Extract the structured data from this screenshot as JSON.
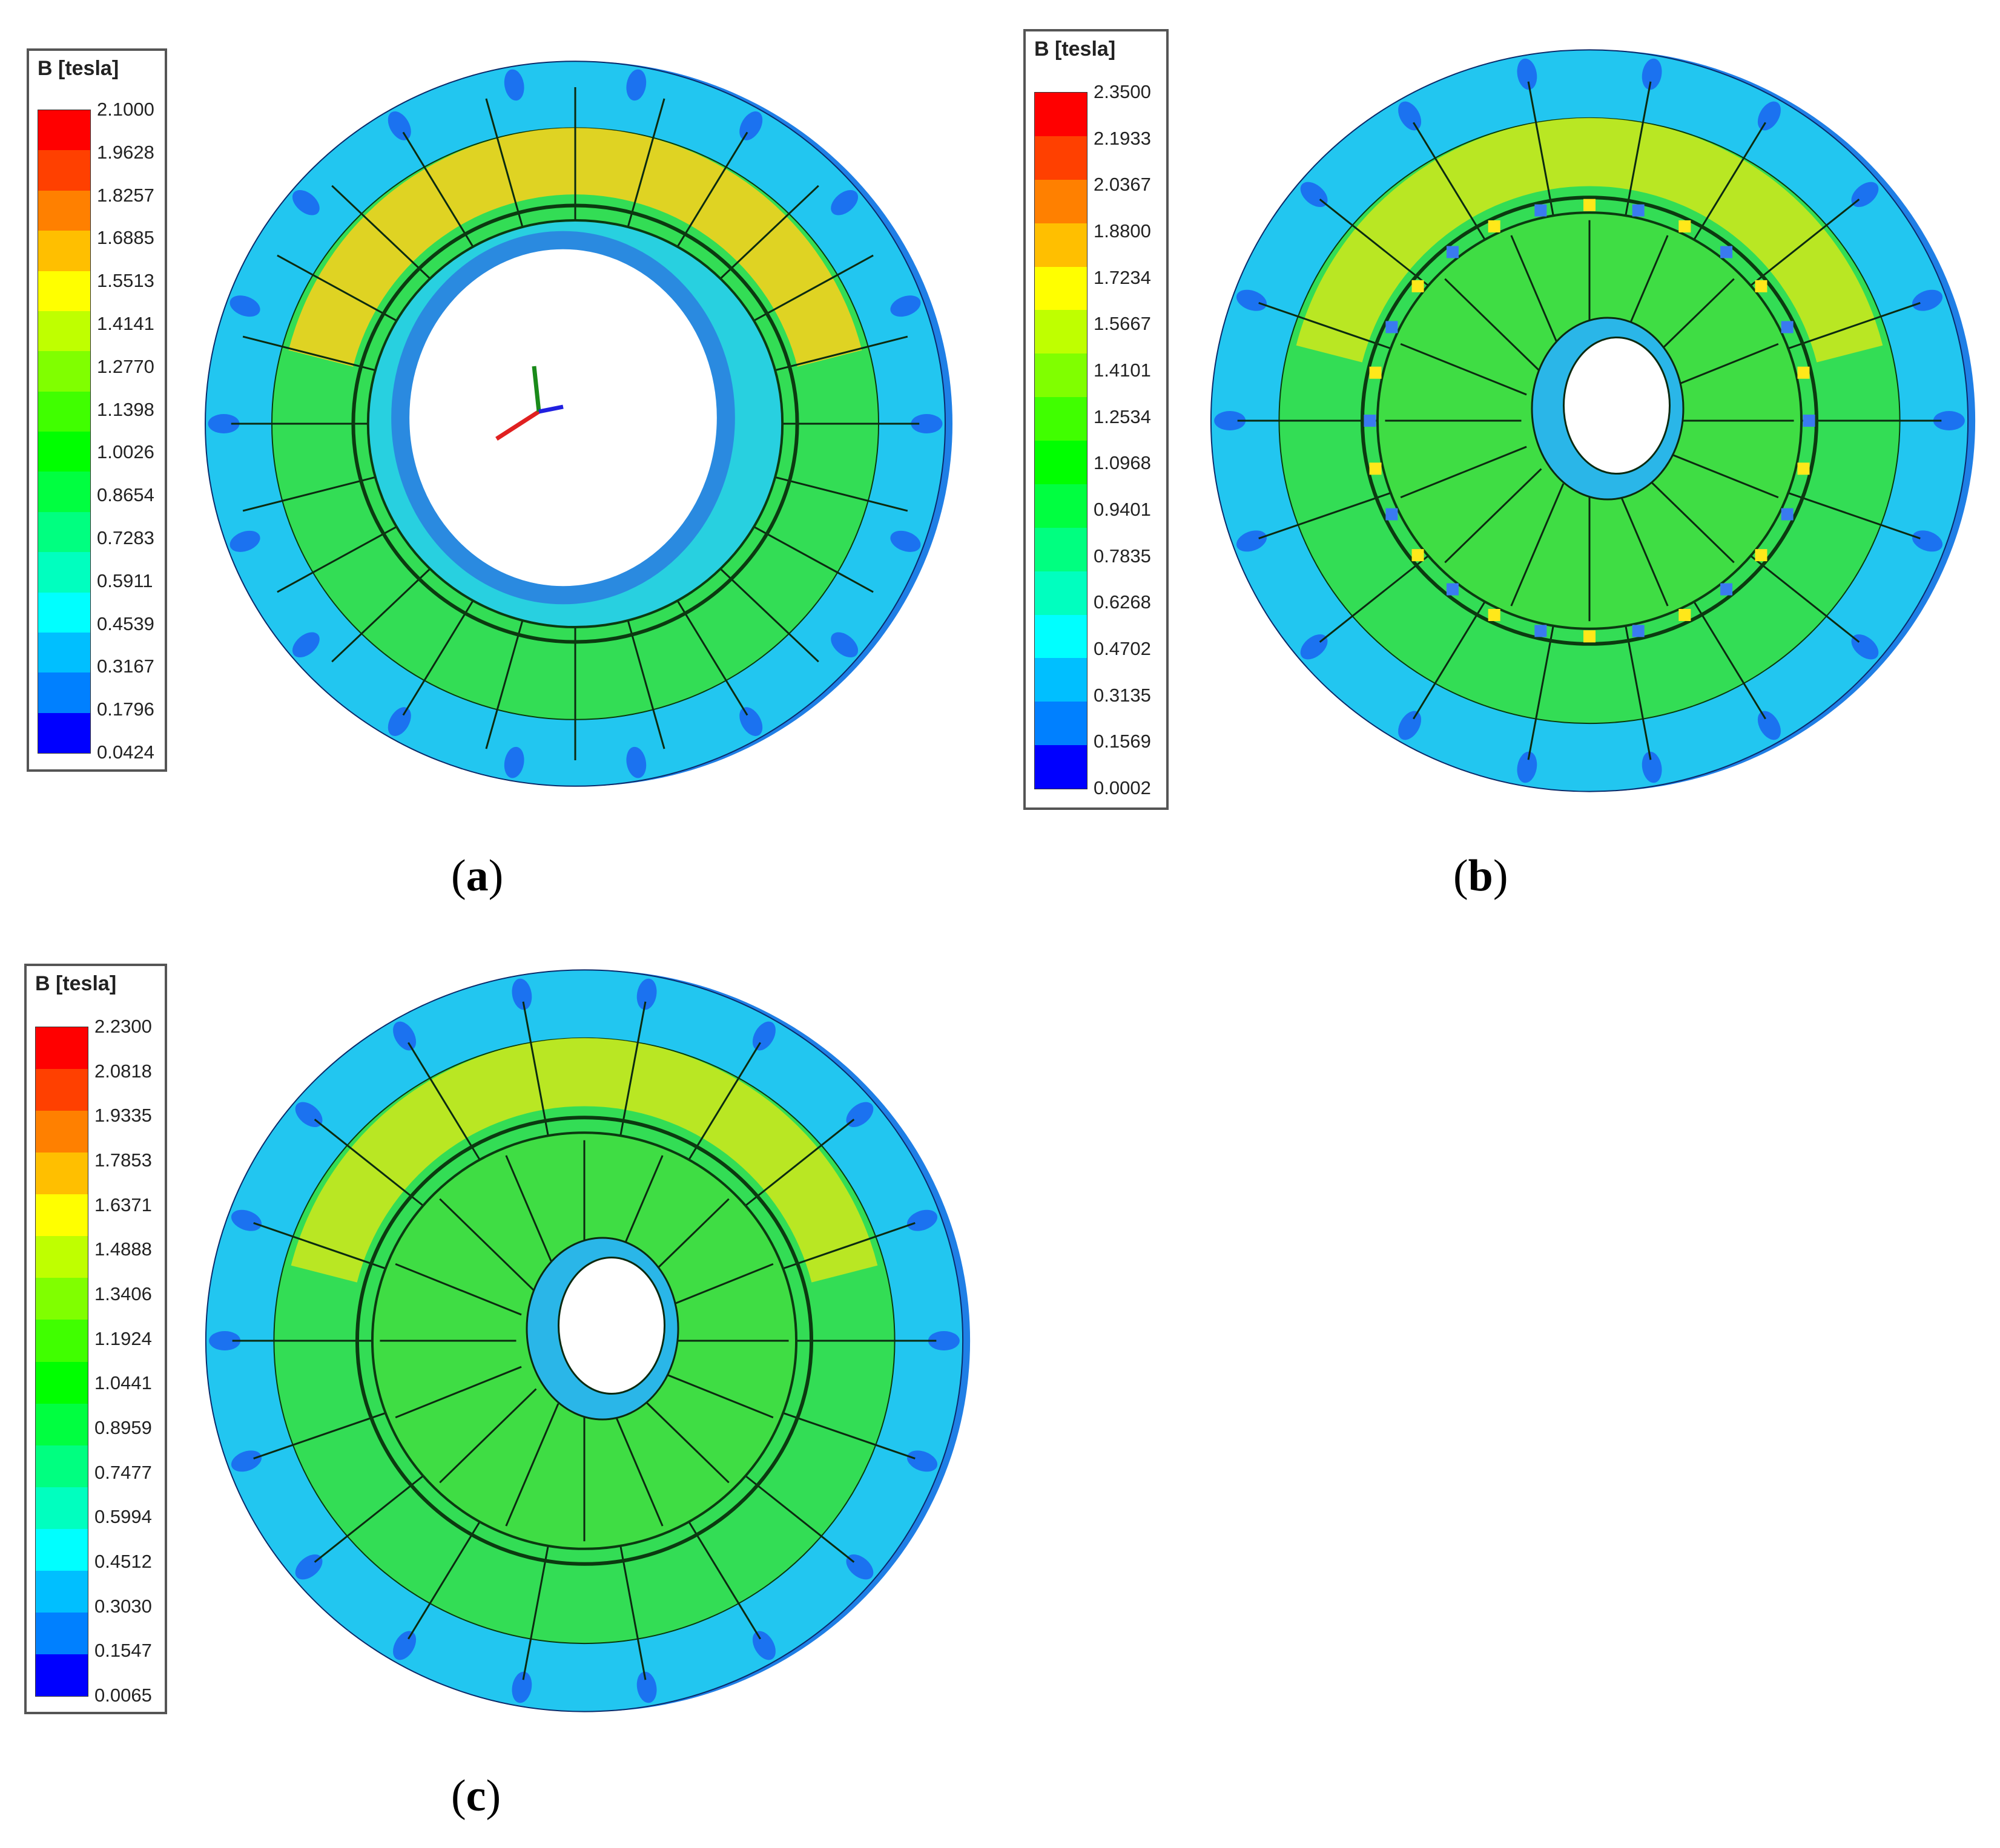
{
  "panels": [
    {
      "id": "a",
      "caption_letter": "a",
      "legend": {
        "title": "B [tesla]",
        "ticks": [
          "2.1000",
          "1.9628",
          "1.8257",
          "1.6885",
          "1.5513",
          "1.4141",
          "1.2770",
          "1.1398",
          "1.0026",
          "0.8654",
          "0.7283",
          "0.5911",
          "0.4539",
          "0.3167",
          "0.1796",
          "0.0424"
        ]
      },
      "bore": "large"
    },
    {
      "id": "b",
      "caption_letter": "b",
      "legend": {
        "title": "B [tesla]",
        "ticks": [
          "2.3500",
          "2.1933",
          "2.0367",
          "1.8800",
          "1.7234",
          "1.5667",
          "1.4101",
          "1.2534",
          "1.0968",
          "0.9401",
          "0.7835",
          "0.6268",
          "0.4702",
          "0.3135",
          "0.1569",
          "0.0002"
        ]
      },
      "bore": "small"
    },
    {
      "id": "c",
      "caption_letter": "c",
      "legend": {
        "title": "B [tesla]",
        "ticks": [
          "2.2300",
          "2.0818",
          "1.9335",
          "1.7853",
          "1.6371",
          "1.4888",
          "1.3406",
          "1.1924",
          "1.0441",
          "0.8959",
          "0.7477",
          "0.5994",
          "0.4512",
          "0.3030",
          "0.1547",
          "0.0065"
        ]
      },
      "bore": "small"
    }
  ],
  "colormap": [
    "#ff0000",
    "#ff4000",
    "#ff8000",
    "#ffbf00",
    "#ffff00",
    "#bfff00",
    "#80ff00",
    "#40ff00",
    "#00ff00",
    "#00ff40",
    "#00ff80",
    "#00ffbf",
    "#00ffff",
    "#00bfff",
    "#0080ff",
    "#0000ff"
  ]
}
